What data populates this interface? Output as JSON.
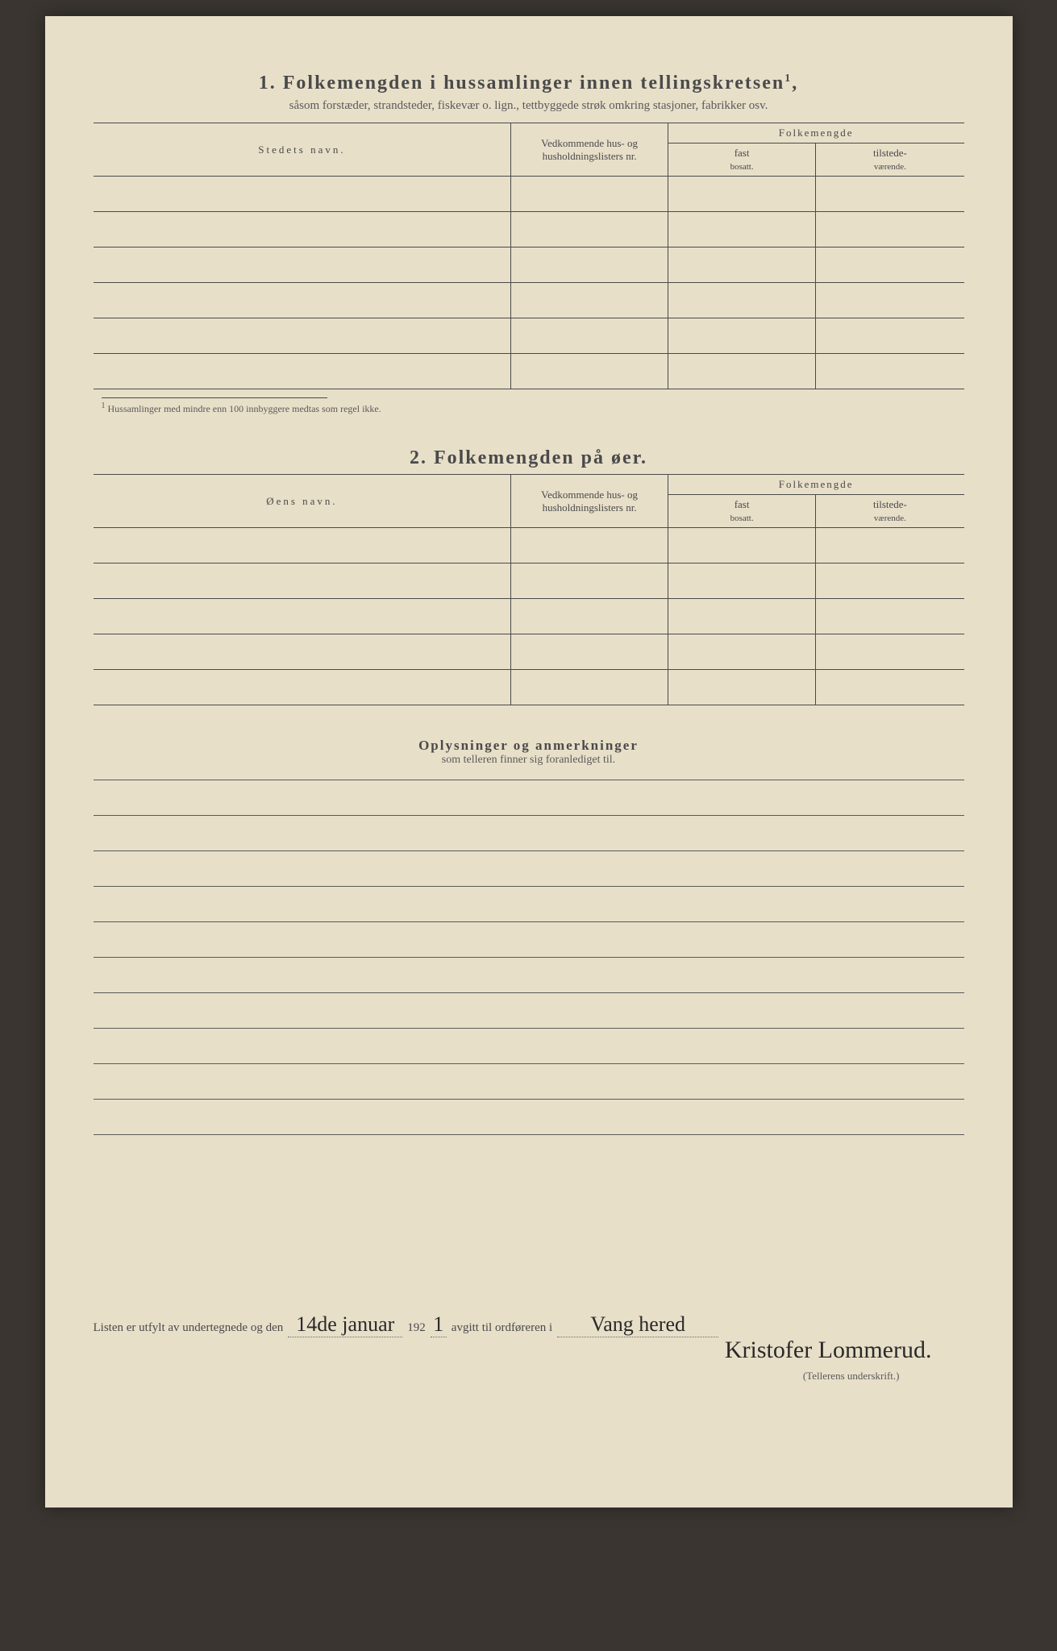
{
  "section1": {
    "number": "1.",
    "title": "Folkemengden i hussamlinger innen tellingskretsen",
    "title_sup": "1",
    "subtitle": "såsom forstæder, strandsteder, fiskevær o. lign., tettbyggede strøk omkring stasjoner, fabrikker osv.",
    "col_name": "Stedets navn.",
    "col_ref": "Vedkommende hus- og husholdningslisters nr.",
    "col_pop": "Folkemengde",
    "col_fast": "fast",
    "col_fast_sub": "bosatt.",
    "col_til": "tilstede-",
    "col_til_sub": "værende.",
    "footnote_mark": "1",
    "footnote": "Hussamlinger med mindre enn 100 innbyggere medtas som regel ikke.",
    "rows": 6
  },
  "section2": {
    "number": "2.",
    "title": "Folkemengden på øer.",
    "col_name": "Øens navn.",
    "col_ref": "Vedkommende hus- og husholdningslisters nr.",
    "col_pop": "Folkemengde",
    "col_fast": "fast",
    "col_fast_sub": "bosatt.",
    "col_til": "tilstede-",
    "col_til_sub": "værende.",
    "rows": 5
  },
  "remarks": {
    "title": "Oplysninger og anmerkninger",
    "subtitle": "som telleren finner sig foranlediget til.",
    "lines": 10
  },
  "signature": {
    "pre": "Listen er utfylt av undertegnede og den",
    "date_hand": "14de januar",
    "year_prefix": "192",
    "year_hand": "1",
    "mid": "avgitt til ordføreren i",
    "place_hand": "Vang hered",
    "signer_hand": "Kristofer Lommerud.",
    "under": "(Tellerens underskrift.)"
  },
  "colors": {
    "page_bg": "#e8dfc9",
    "outer_bg": "#3a3530",
    "line": "#4a4a4a",
    "text": "#4a4a4a"
  },
  "layout": {
    "col_name_width": "48%",
    "col_ref_width": "18%",
    "col_pop_sub_width": "17%"
  }
}
